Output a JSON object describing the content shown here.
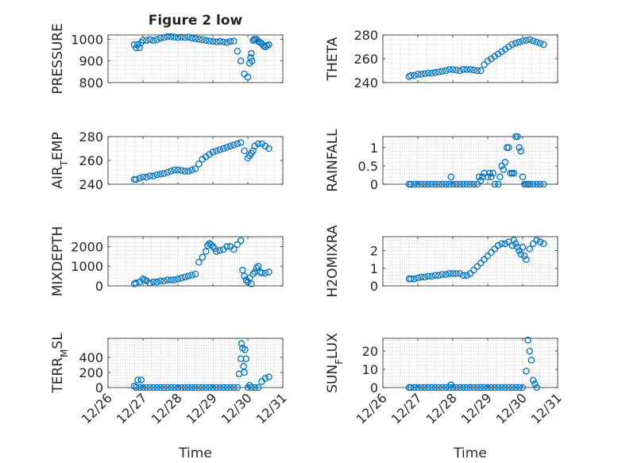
{
  "figure_title": "Figure 2 low",
  "chart_data": [
    {
      "type": "scatter",
      "title": "Figure 2 low",
      "ylabel": "PRESSURE",
      "ylabel_parts": [
        {
          "text": "PRESSURE"
        }
      ],
      "xlabel": "",
      "xlim": [
        0,
        5
      ],
      "ylim": [
        800,
        1020
      ],
      "yticks": [
        800,
        900,
        1000
      ],
      "ytick_labels": [
        "800",
        "900",
        "1000"
      ],
      "xticks": [
        0,
        1,
        2,
        3,
        4,
        5
      ],
      "xtick_labels": [],
      "grid": true,
      "series": [
        {
          "x": [
            0.75,
            0.8,
            0.85,
            0.9,
            0.95,
            1.0,
            1.1,
            1.2,
            1.3,
            1.4,
            1.5,
            1.6,
            1.7,
            1.8,
            1.9,
            2.0,
            2.1,
            2.2,
            2.3,
            2.4,
            2.5,
            2.6,
            2.7,
            2.8,
            2.9,
            3.0,
            3.1,
            3.2,
            3.3,
            3.4,
            3.5,
            3.6,
            3.7,
            3.8,
            3.9,
            4.0,
            4.05,
            4.08,
            4.1,
            4.12,
            4.15,
            4.18,
            4.2,
            4.25,
            4.3,
            4.35,
            4.4,
            4.45,
            4.5,
            4.55,
            4.6
          ],
          "y": [
            975,
            960,
            975,
            960,
            985,
            995,
            995,
            998,
            995,
            998,
            1005,
            1008,
            1012,
            1012,
            1010,
            1008,
            1010,
            1008,
            1010,
            1005,
            1003,
            1000,
            998,
            995,
            992,
            990,
            988,
            990,
            988,
            985,
            990,
            992,
            945,
            900,
            840,
            825,
            890,
            915,
            935,
            900,
            995,
            1000,
            998,
            1000,
            990,
            985,
            980,
            970,
            965,
            970,
            975
          ]
        }
      ]
    },
    {
      "type": "scatter",
      "ylabel": "THETA",
      "ylabel_parts": [
        {
          "text": "THETA"
        }
      ],
      "xlabel": "",
      "xlim": [
        0,
        5
      ],
      "ylim": [
        240,
        280
      ],
      "yticks": [
        240,
        260,
        280
      ],
      "ytick_labels": [
        "240",
        "260",
        "280"
      ],
      "xticks": [
        0,
        1,
        2,
        3,
        4,
        5
      ],
      "xtick_labels": [],
      "grid": true,
      "series": [
        {
          "x": [
            0.75,
            0.8,
            0.9,
            1.0,
            1.1,
            1.2,
            1.3,
            1.4,
            1.5,
            1.6,
            1.7,
            1.8,
            1.9,
            2.0,
            2.1,
            2.2,
            2.3,
            2.4,
            2.5,
            2.6,
            2.7,
            2.8,
            2.9,
            3.0,
            3.1,
            3.2,
            3.3,
            3.4,
            3.5,
            3.6,
            3.7,
            3.8,
            3.9,
            4.0,
            4.1,
            4.2,
            4.3,
            4.4,
            4.5,
            4.6
          ],
          "y": [
            245,
            246,
            246,
            247,
            247,
            247.5,
            248,
            248,
            248.5,
            249,
            249.5,
            250,
            251,
            251,
            250.5,
            250,
            251,
            251,
            251,
            250.5,
            250,
            250,
            255,
            258,
            260,
            262,
            264,
            266,
            268,
            270,
            272,
            273,
            274,
            275,
            275.5,
            276,
            275,
            274,
            273,
            272
          ]
        }
      ]
    },
    {
      "type": "scatter",
      "ylabel": "AIR_TEMP",
      "ylabel_parts": [
        {
          "text": "AIR"
        },
        {
          "text": "T",
          "sub": true
        },
        {
          "text": "EMP"
        }
      ],
      "xlabel": "",
      "xlim": [
        0,
        5
      ],
      "ylim": [
        240,
        280
      ],
      "yticks": [
        240,
        260,
        280
      ],
      "ytick_labels": [
        "240",
        "260",
        "280"
      ],
      "xticks": [
        0,
        1,
        2,
        3,
        4,
        5
      ],
      "xtick_labels": [],
      "grid": true,
      "series": [
        {
          "x": [
            0.75,
            0.8,
            0.9,
            1.0,
            1.1,
            1.2,
            1.3,
            1.4,
            1.5,
            1.6,
            1.7,
            1.8,
            1.9,
            2.0,
            2.1,
            2.2,
            2.3,
            2.4,
            2.5,
            2.6,
            2.7,
            2.8,
            2.9,
            3.0,
            3.1,
            3.2,
            3.3,
            3.4,
            3.5,
            3.6,
            3.7,
            3.8,
            3.9,
            4.0,
            4.05,
            4.1,
            4.15,
            4.2,
            4.3,
            4.4,
            4.5,
            4.6
          ],
          "y": [
            244,
            244,
            245,
            246,
            246,
            247,
            247,
            248,
            248.5,
            249,
            250,
            251,
            252,
            252,
            251.5,
            251,
            251,
            252,
            253,
            257,
            261,
            263,
            265,
            267,
            268,
            269,
            270,
            271,
            272,
            273,
            274,
            275,
            268,
            262,
            264,
            266,
            268,
            272,
            274,
            274,
            272,
            270
          ]
        }
      ]
    },
    {
      "type": "scatter",
      "ylabel": "RAINFALL",
      "ylabel_parts": [
        {
          "text": "RAINFALL"
        }
      ],
      "xlabel": "",
      "xlim": [
        0,
        5
      ],
      "ylim": [
        0,
        1.3
      ],
      "yticks": [
        0,
        0.5,
        1
      ],
      "ytick_labels": [
        "0",
        "0.5",
        "1"
      ],
      "xticks": [
        0,
        1,
        2,
        3,
        4,
        5
      ],
      "xtick_labels": [],
      "grid": true,
      "series": [
        {
          "x": [
            0.75,
            0.8,
            0.9,
            1.0,
            1.1,
            1.2,
            1.3,
            1.4,
            1.5,
            1.6,
            1.7,
            1.8,
            1.9,
            1.95,
            2.0,
            2.1,
            2.2,
            2.3,
            2.4,
            2.5,
            2.6,
            2.7,
            2.75,
            2.8,
            2.85,
            2.9,
            3.0,
            3.05,
            3.1,
            3.15,
            3.2,
            3.3,
            3.35,
            3.4,
            3.45,
            3.5,
            3.55,
            3.6,
            3.65,
            3.7,
            3.75,
            3.8,
            3.85,
            3.9,
            3.95,
            4.0,
            4.05,
            4.1,
            4.15,
            4.2,
            4.3,
            4.4,
            4.5,
            4.6
          ],
          "y": [
            0,
            0,
            0,
            0,
            0,
            0,
            0,
            0,
            0,
            0,
            0,
            0,
            0,
            0.2,
            0,
            0,
            0,
            0,
            0,
            0,
            0,
            0,
            0.2,
            0.1,
            0.2,
            0.3,
            0.2,
            0.3,
            0.2,
            0.3,
            0,
            0,
            0.2,
            0.5,
            0.4,
            0.6,
            1.0,
            1.0,
            0.3,
            0.3,
            0.3,
            1.3,
            1.3,
            1.0,
            0.9,
            0.2,
            0,
            0,
            0,
            0,
            0,
            0,
            0,
            0
          ]
        }
      ]
    },
    {
      "type": "scatter",
      "ylabel": "MIXDEPTH",
      "ylabel_parts": [
        {
          "text": "MIXDEPTH"
        }
      ],
      "xlabel": "",
      "xlim": [
        0,
        5
      ],
      "ylim": [
        0,
        2500
      ],
      "yticks": [
        0,
        1000,
        2000
      ],
      "ytick_labels": [
        "0",
        "1000",
        "2000"
      ],
      "xticks": [
        0,
        1,
        2,
        3,
        4,
        5
      ],
      "xtick_labels": [],
      "grid": true,
      "series": [
        {
          "x": [
            0.75,
            0.8,
            0.9,
            1.0,
            1.05,
            1.1,
            1.2,
            1.3,
            1.4,
            1.5,
            1.6,
            1.7,
            1.8,
            1.9,
            2.0,
            2.1,
            2.2,
            2.3,
            2.4,
            2.5,
            2.6,
            2.7,
            2.8,
            2.85,
            2.9,
            2.95,
            3.0,
            3.05,
            3.1,
            3.2,
            3.3,
            3.4,
            3.5,
            3.6,
            3.7,
            3.8,
            3.85,
            3.9,
            3.95,
            4.0,
            4.05,
            4.1,
            4.15,
            4.2,
            4.25,
            4.3,
            4.35,
            4.4,
            4.5,
            4.6
          ],
          "y": [
            100,
            150,
            200,
            350,
            300,
            250,
            150,
            200,
            200,
            250,
            250,
            300,
            300,
            300,
            350,
            400,
            450,
            500,
            550,
            600,
            1200,
            1450,
            1750,
            2050,
            2150,
            2100,
            2000,
            1900,
            1750,
            1800,
            1850,
            2000,
            2000,
            1850,
            2100,
            2300,
            800,
            500,
            300,
            200,
            400,
            100,
            600,
            700,
            900,
            1000,
            700,
            650,
            650,
            700
          ]
        }
      ]
    },
    {
      "type": "scatter",
      "ylabel": "H2OMIXRA",
      "ylabel_parts": [
        {
          "text": "H2OMIXRA"
        }
      ],
      "xlabel": "",
      "xlim": [
        0,
        5
      ],
      "ylim": [
        0,
        2.8
      ],
      "yticks": [
        0,
        1,
        2
      ],
      "ytick_labels": [
        "0",
        "1",
        "2"
      ],
      "xticks": [
        0,
        1,
        2,
        3,
        4,
        5
      ],
      "xtick_labels": [],
      "grid": true,
      "series": [
        {
          "x": [
            0.75,
            0.8,
            0.9,
            1.0,
            1.1,
            1.2,
            1.3,
            1.4,
            1.5,
            1.6,
            1.7,
            1.8,
            1.9,
            2.0,
            2.1,
            2.2,
            2.3,
            2.4,
            2.5,
            2.6,
            2.7,
            2.8,
            2.9,
            3.0,
            3.1,
            3.2,
            3.3,
            3.4,
            3.5,
            3.6,
            3.7,
            3.75,
            3.8,
            3.85,
            3.9,
            3.95,
            4.0,
            4.05,
            4.1,
            4.2,
            4.3,
            4.4,
            4.5,
            4.6
          ],
          "y": [
            0.4,
            0.4,
            0.4,
            0.45,
            0.5,
            0.5,
            0.55,
            0.55,
            0.6,
            0.6,
            0.65,
            0.65,
            0.7,
            0.7,
            0.7,
            0.7,
            0.6,
            0.6,
            0.7,
            0.9,
            1.1,
            1.3,
            1.5,
            1.7,
            1.9,
            2.1,
            2.3,
            2.4,
            2.4,
            2.5,
            2.3,
            2.6,
            2.4,
            2.2,
            2.0,
            1.8,
            2.2,
            1.7,
            1.5,
            2.1,
            2.4,
            2.6,
            2.5,
            2.4
          ]
        }
      ]
    },
    {
      "type": "scatter",
      "ylabel": "TERR_MSL",
      "ylabel_parts": [
        {
          "text": "TERR"
        },
        {
          "text": "M",
          "sub": true
        },
        {
          "text": "SL"
        }
      ],
      "xlabel": "Time",
      "xlim": [
        0,
        5
      ],
      "ylim": [
        0,
        650
      ],
      "yticks": [
        0,
        200,
        400
      ],
      "ytick_labels": [
        "0",
        "200",
        "400"
      ],
      "xticks": [
        0,
        1,
        2,
        3,
        4,
        5
      ],
      "xtick_labels": [
        "12/26",
        "12/27",
        "12/28",
        "12/29",
        "12/30",
        "12/31"
      ],
      "grid": true,
      "series": [
        {
          "x": [
            0.75,
            0.8,
            0.85,
            0.9,
            0.95,
            1.0,
            1.1,
            1.2,
            1.3,
            1.4,
            1.5,
            1.6,
            1.7,
            1.8,
            1.9,
            2.0,
            2.1,
            2.2,
            2.3,
            2.4,
            2.5,
            2.6,
            2.7,
            2.8,
            2.9,
            3.0,
            3.1,
            3.2,
            3.3,
            3.4,
            3.5,
            3.6,
            3.7,
            3.75,
            3.8,
            3.82,
            3.85,
            3.88,
            3.9,
            3.92,
            3.95,
            4.0,
            4.05,
            4.1,
            4.2,
            4.3,
            4.4,
            4.5,
            4.6
          ],
          "y": [
            20,
            0,
            100,
            0,
            100,
            0,
            0,
            0,
            0,
            0,
            0,
            0,
            0,
            0,
            0,
            0,
            0,
            0,
            0,
            0,
            0,
            0,
            0,
            0,
            0,
            0,
            0,
            0,
            0,
            0,
            0,
            0,
            0,
            180,
            380,
            580,
            520,
            280,
            200,
            500,
            380,
            0,
            30,
            0,
            0,
            0,
            80,
            120,
            140
          ]
        }
      ]
    },
    {
      "type": "scatter",
      "ylabel": "SUN_FLUX",
      "ylabel_parts": [
        {
          "text": "SUN"
        },
        {
          "text": "F",
          "sub": true
        },
        {
          "text": "LUX"
        }
      ],
      "xlabel": "Time",
      "xlim": [
        0,
        5
      ],
      "ylim": [
        0,
        27
      ],
      "yticks": [
        0,
        10,
        20
      ],
      "ytick_labels": [
        "0",
        "10",
        "20"
      ],
      "xticks": [
        0,
        1,
        2,
        3,
        4,
        5
      ],
      "xtick_labels": [
        "12/26",
        "12/27",
        "12/28",
        "12/29",
        "12/30",
        "12/31"
      ],
      "grid": true,
      "series": [
        {
          "x": [
            0.75,
            0.8,
            0.9,
            1.0,
            1.1,
            1.2,
            1.3,
            1.4,
            1.5,
            1.6,
            1.7,
            1.8,
            1.9,
            1.95,
            2.0,
            2.1,
            2.2,
            2.3,
            2.4,
            2.5,
            2.6,
            2.7,
            2.8,
            2.9,
            3.0,
            3.1,
            3.2,
            3.3,
            3.4,
            3.5,
            3.6,
            3.7,
            3.8,
            3.9,
            4.0,
            4.1,
            4.15,
            4.2,
            4.25,
            4.3,
            4.35,
            4.4
          ],
          "y": [
            0,
            0,
            0,
            0,
            0,
            0,
            0,
            0,
            0,
            0,
            0,
            0,
            0,
            1.5,
            0,
            0,
            0,
            0,
            0,
            0,
            0,
            0,
            0,
            0,
            0,
            0,
            0,
            0,
            0,
            0,
            0,
            0,
            0,
            0,
            0,
            9,
            26,
            20,
            15,
            4,
            2,
            0
          ]
        }
      ]
    }
  ]
}
